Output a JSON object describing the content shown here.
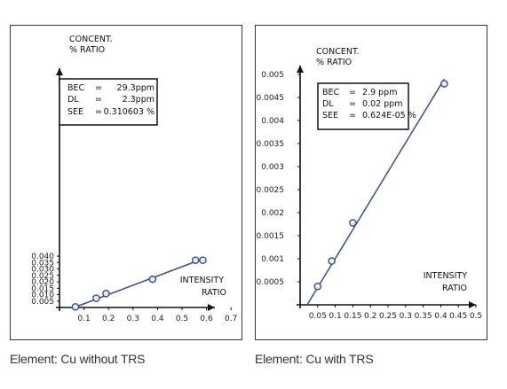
{
  "chart_data": [
    {
      "type": "scatter",
      "title": "",
      "ylabel": "CONCENT.",
      "ylabel2": "% RATIO",
      "xlabel": "INTENSITY",
      "xlabel2": "RATIO",
      "xlim": [
        0,
        0.75
      ],
      "ylim": [
        0,
        0.04
      ],
      "x_ticks": [
        "0.1",
        "0.2",
        "0.3",
        "0.4",
        "0.5",
        "0.6",
        "0.7"
      ],
      "x_tick_values": [
        0.1,
        0.2,
        0.3,
        0.4,
        0.5,
        0.6,
        0.7
      ],
      "y_ticks": [
        "0.005",
        "0.010",
        "0.015",
        "0.020",
        "0.025",
        "0.030",
        "0.035",
        "0.040"
      ],
      "y_tick_values": [
        0.005,
        0.01,
        0.015,
        0.02,
        0.025,
        0.03,
        0.035,
        0.04
      ],
      "points": [
        [
          0.065,
          0.0005
        ],
        [
          0.15,
          0.0072
        ],
        [
          0.19,
          0.0108
        ],
        [
          0.38,
          0.022
        ],
        [
          0.555,
          0.0368
        ],
        [
          0.585,
          0.0368
        ]
      ],
      "fit_line": [
        [
          0.06,
          0.0
        ],
        [
          0.58,
          0.0375
        ]
      ],
      "legend_position": "top-left",
      "annotation": [
        {
          "label": "BEC",
          "sep": "=",
          "value": "29.3ppm"
        },
        {
          "label": "DL",
          "sep": "=",
          "value": "2.3ppm"
        },
        {
          "label": "SEE",
          "sep": "=",
          "value": "0.310603 %"
        }
      ],
      "caption": "Element: Cu without TRS"
    },
    {
      "type": "scatter",
      "title": "",
      "ylabel": "CONCENT.",
      "ylabel2": "% RATIO",
      "xlabel": "INTENSITY",
      "xlabel2": "RATIO",
      "xlim": [
        0,
        0.5
      ],
      "ylim": [
        0,
        0.005
      ],
      "x_ticks": [
        "0.05",
        "0.1",
        "0.15",
        "0.2",
        "0.25",
        "0.3",
        "0.35",
        "0.4",
        "0.45",
        "0.5"
      ],
      "x_tick_values": [
        0.05,
        0.1,
        0.15,
        0.2,
        0.25,
        0.3,
        0.35,
        0.4,
        0.45,
        0.5
      ],
      "y_ticks": [
        "0.0005",
        "0.001",
        "0.0015",
        "0.002",
        "0.0025",
        "0.003",
        "0.0035",
        "0.004",
        "0.0045",
        "0.005"
      ],
      "y_tick_values": [
        0.0005,
        0.001,
        0.0015,
        0.002,
        0.0025,
        0.003,
        0.0035,
        0.004,
        0.0045,
        0.005
      ],
      "points": [
        [
          0.05,
          0.0004
        ],
        [
          0.09,
          0.00095
        ],
        [
          0.15,
          0.00178
        ],
        [
          0.41,
          0.0048
        ]
      ],
      "fit_line": [
        [
          0.02,
          0.0
        ],
        [
          0.41,
          0.0049
        ]
      ],
      "legend_position": "top-left",
      "annotation": [
        {
          "label": "BEC",
          "sep": "=",
          "value": "2.9 ppm"
        },
        {
          "label": "DL",
          "sep": "=",
          "value": "0.02 ppm"
        },
        {
          "label": "SEE",
          "sep": "=",
          "value": "0.624E-05 %"
        }
      ],
      "caption": "Element: Cu with TRS"
    }
  ]
}
